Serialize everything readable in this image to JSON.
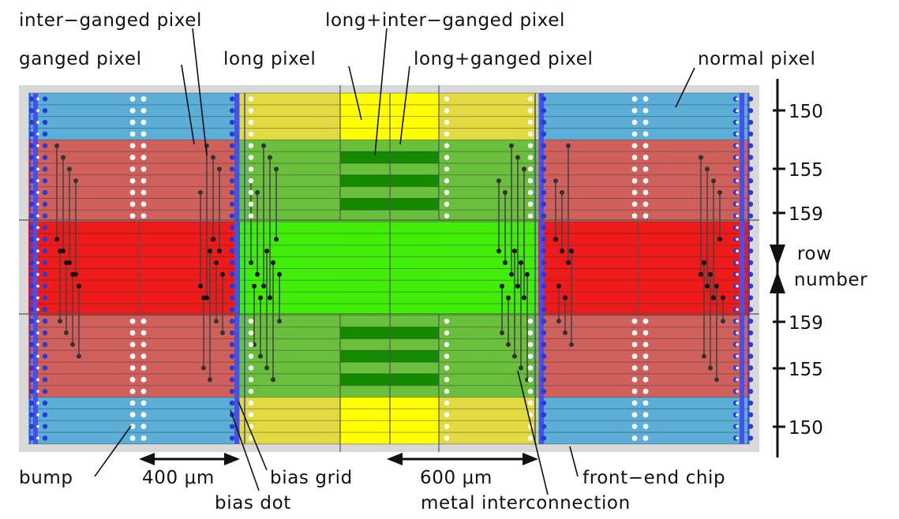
{
  "labels": {
    "inter_ganged_pixel": "inter−ganged pixel",
    "ganged_pixel": "ganged pixel",
    "long_pixel": "long pixel",
    "long_inter_ganged_pixel": "long+inter−ganged pixel",
    "long_ganged_pixel": "long+ganged pixel",
    "normal_pixel": "normal pixel",
    "bump": "bump",
    "width_400": "400 μm",
    "bias_grid": "bias grid",
    "bias_dot": "bias dot",
    "width_600": "600 μm",
    "front_end_chip": "front−end chip",
    "metal_interconnection": "metal interconnection",
    "row": "row",
    "number": "number"
  },
  "row_ticks": [
    "150",
    "155",
    "159",
    "159",
    "155",
    "150"
  ],
  "colors": {
    "normal": "#5aaed8",
    "ganged": "#d0605c",
    "inter_ganged": "#ef1a1a",
    "long": "#e3da42",
    "long_ganged": "#6abf3c",
    "long_inter_ganged": "#41ee08",
    "long_center": "#ffff00",
    "long_ganged_dark": "#138a00",
    "bias_grid": "#4550ee",
    "chip": "#d9d9d9"
  }
}
